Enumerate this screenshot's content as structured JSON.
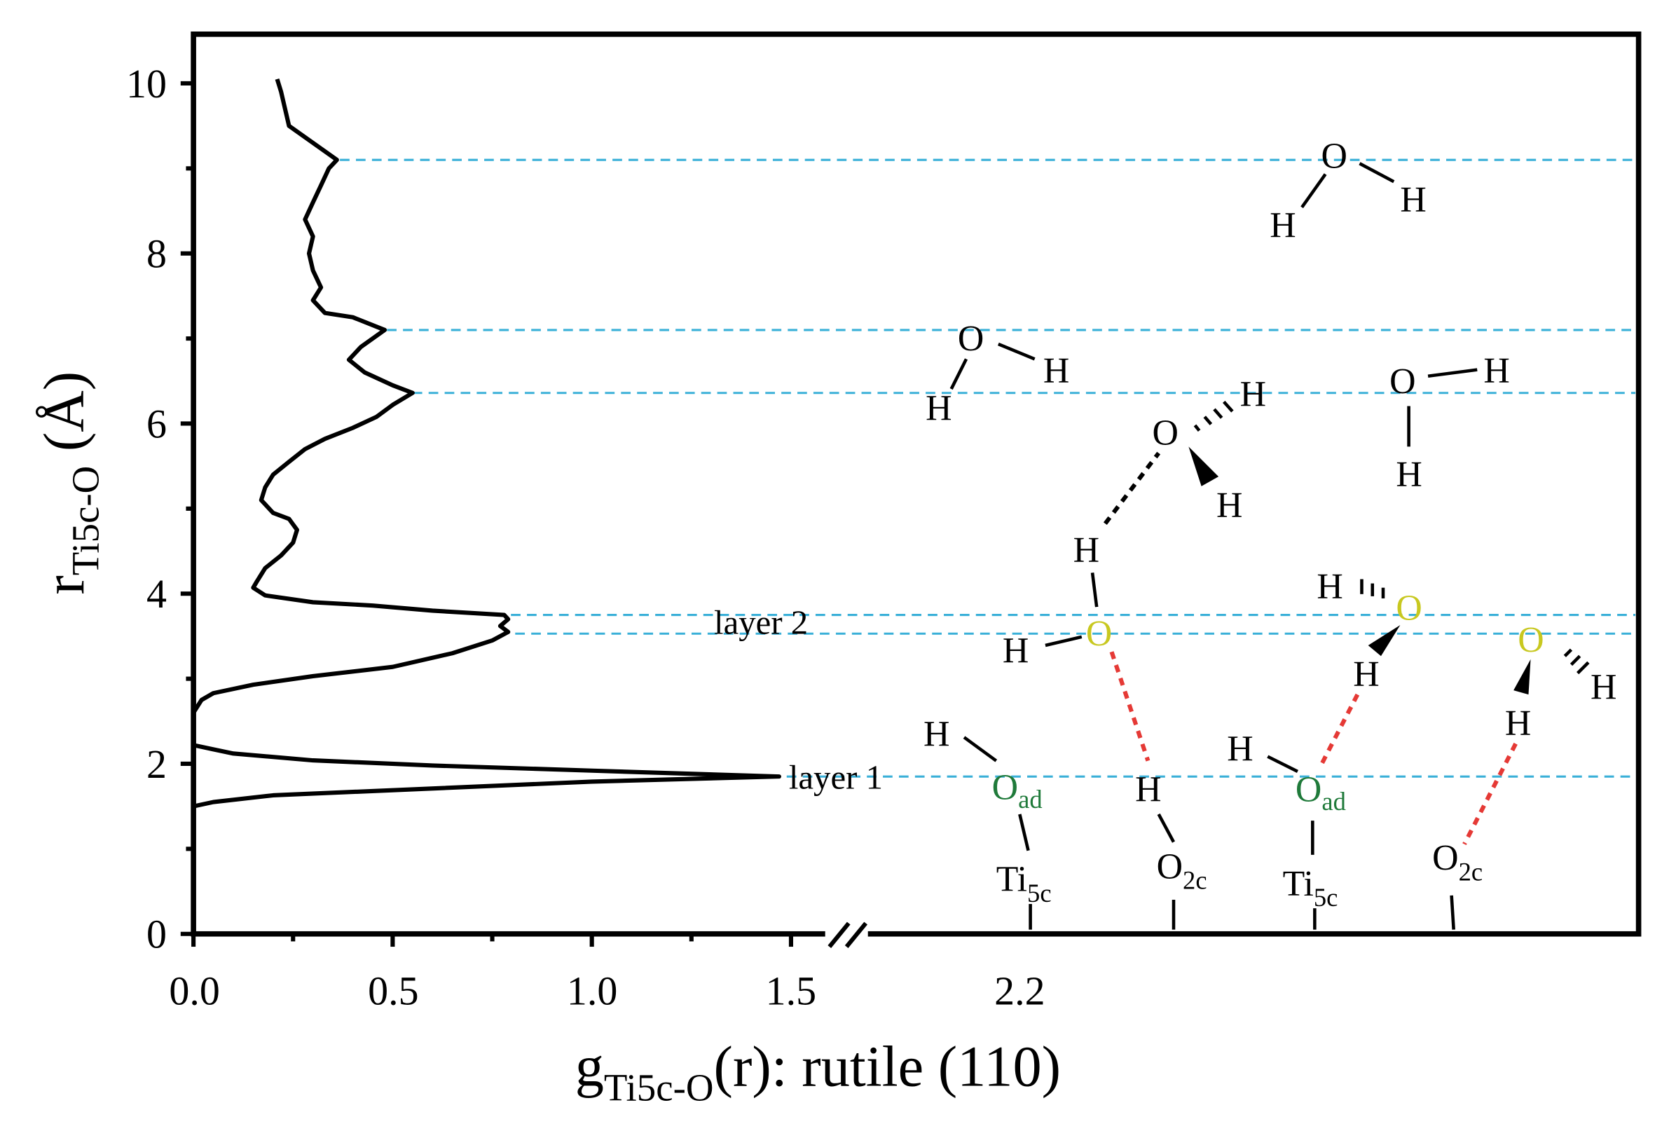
{
  "chart_data": {
    "type": "line",
    "orientation": "horizontal",
    "xlabel": {
      "main": "g",
      "sub": "Ti5c-O",
      "rest": "(r):  rutile (110)"
    },
    "ylabel": {
      "main": "r",
      "sub": "Ti5c-O",
      "rest": " (Å)"
    },
    "xlim": [
      0,
      1.5
    ],
    "ylim": [
      0,
      10.5
    ],
    "x_ticks": [
      "0.0",
      "0.5",
      "1.0",
      "1.5",
      "2.2"
    ],
    "y_ticks": [
      "0",
      "2",
      "4",
      "6",
      "8",
      "10"
    ],
    "axis_break": true,
    "series": [
      {
        "points": [
          [
            0.0,
            1.45
          ],
          [
            0.0,
            1.5
          ],
          [
            0.05,
            1.55
          ],
          [
            0.2,
            1.63
          ],
          [
            0.5,
            1.69
          ],
          [
            1.0,
            1.79
          ],
          [
            1.47,
            1.85
          ],
          [
            1.0,
            1.92
          ],
          [
            0.6,
            1.98
          ],
          [
            0.3,
            2.04
          ],
          [
            0.1,
            2.12
          ],
          [
            0.05,
            2.17
          ],
          [
            0.0,
            2.22
          ],
          [
            0.0,
            2.4
          ],
          [
            0.0,
            2.6
          ],
          [
            0.02,
            2.75
          ],
          [
            0.05,
            2.83
          ],
          [
            0.15,
            2.93
          ],
          [
            0.3,
            3.03
          ],
          [
            0.5,
            3.14
          ],
          [
            0.65,
            3.3
          ],
          [
            0.75,
            3.45
          ],
          [
            0.79,
            3.55
          ],
          [
            0.77,
            3.62
          ],
          [
            0.79,
            3.7
          ],
          [
            0.78,
            3.75
          ],
          [
            0.6,
            3.8
          ],
          [
            0.45,
            3.86
          ],
          [
            0.3,
            3.9
          ],
          [
            0.18,
            3.98
          ],
          [
            0.15,
            4.07
          ],
          [
            0.16,
            4.15
          ],
          [
            0.18,
            4.3
          ],
          [
            0.22,
            4.45
          ],
          [
            0.25,
            4.6
          ],
          [
            0.26,
            4.75
          ],
          [
            0.24,
            4.88
          ],
          [
            0.2,
            4.95
          ],
          [
            0.17,
            5.1
          ],
          [
            0.18,
            5.25
          ],
          [
            0.2,
            5.4
          ],
          [
            0.24,
            5.55
          ],
          [
            0.28,
            5.7
          ],
          [
            0.33,
            5.82
          ],
          [
            0.4,
            5.95
          ],
          [
            0.46,
            6.08
          ],
          [
            0.5,
            6.22
          ],
          [
            0.55,
            6.36
          ],
          [
            0.5,
            6.45
          ],
          [
            0.43,
            6.6
          ],
          [
            0.39,
            6.75
          ],
          [
            0.42,
            6.9
          ],
          [
            0.48,
            7.1
          ],
          [
            0.4,
            7.25
          ],
          [
            0.33,
            7.3
          ],
          [
            0.3,
            7.45
          ],
          [
            0.32,
            7.6
          ],
          [
            0.3,
            7.8
          ],
          [
            0.29,
            8.0
          ],
          [
            0.3,
            8.2
          ],
          [
            0.28,
            8.4
          ],
          [
            0.3,
            8.6
          ],
          [
            0.32,
            8.8
          ],
          [
            0.34,
            9.0
          ],
          [
            0.36,
            9.1
          ],
          [
            0.3,
            9.3
          ],
          [
            0.24,
            9.5
          ],
          [
            0.23,
            9.7
          ],
          [
            0.22,
            9.9
          ],
          [
            0.21,
            10.05
          ]
        ]
      }
    ],
    "reference_lines_y": [
      9.1,
      7.1,
      6.36,
      3.75,
      3.53,
      1.85
    ],
    "annotations": [
      "layer 2",
      "layer 1"
    ]
  },
  "schematic": {
    "atoms": {
      "O": "O",
      "H": "H",
      "O_ad": "O",
      "ad_sub": "ad",
      "Ti": "Ti",
      "Ti_sub": "5c",
      "O2c": "O",
      "O2c_sub": "2c"
    },
    "colors": {
      "hbond_red": "#e53935",
      "hbond_black": "#000000",
      "guide_lines": "#3ab0d8",
      "adsorbed_O": "#1f7a3a",
      "layer2_O": "#c8c820",
      "curve": "#000000"
    }
  }
}
